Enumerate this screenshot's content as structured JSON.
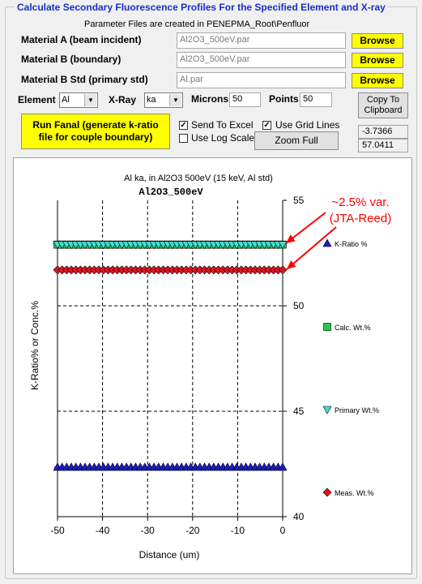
{
  "group_title": "Calculate Secondary Fluorescence Profiles For the Specified Element and X-ray",
  "subtitle": "Parameter Files are created in PENEPMA_Root\\Penfluor",
  "materials": [
    {
      "label": "Material A (beam incident)",
      "value": "Al2O3_500eV.par",
      "button": "Browse"
    },
    {
      "label": "Material B (boundary)",
      "value": "Al2O3_500eV.par",
      "button": "Browse"
    },
    {
      "label": "Material B Std (primary std)",
      "value": "Al.par",
      "button": "Browse"
    }
  ],
  "element": {
    "label": "Element",
    "value": "Al"
  },
  "xray": {
    "label": "X-Ray",
    "value": "ka"
  },
  "microns": {
    "label": "Microns",
    "value": "50"
  },
  "points": {
    "label": "Points",
    "value": "50"
  },
  "copy_button": "Copy To Clipboard",
  "run_button": "Run Fanal (generate k-ratio file for couple boundary)",
  "checkboxes": {
    "send_to_excel": {
      "label": "Send To Excel",
      "checked": true
    },
    "use_grid_lines": {
      "label": "Use Grid Lines",
      "checked": true
    },
    "use_log_scale": {
      "label": "Use Log Scale",
      "checked": false
    }
  },
  "zoom_button": "Zoom Full",
  "readouts": [
    "-3.7366",
    "57.0411"
  ],
  "annotation": {
    "line1": "~2.5% var.",
    "line2": "(JTA-Reed)",
    "color": "#ff0000"
  },
  "chart_data": {
    "type": "line",
    "title": "Al ka, in Al2O3 500eV (15 keV, Al std)",
    "subtitle": "Al2O3_500eV",
    "xlabel": "Distance (um)",
    "ylabel": "K-Ratio% or Conc.%",
    "xlim": [
      -50,
      0
    ],
    "ylim": [
      40,
      55
    ],
    "xticks": [
      "-50",
      "-40",
      "-30",
      "-20",
      "-10",
      "0"
    ],
    "yticks": [
      "40",
      "45",
      "50",
      "55"
    ],
    "grid": true,
    "legend_position": "right",
    "npoints": 50,
    "series": [
      {
        "name": "K-Ratio %",
        "y": 42.35,
        "color": "#1c1cc8",
        "marker": "triangle-up"
      },
      {
        "name": "Calc. Wt.%",
        "y": 52.9,
        "color": "#22c84a",
        "marker": "square"
      },
      {
        "name": "Primary Wt.%",
        "y": 52.9,
        "color": "#40e0d0",
        "marker": "triangle-down"
      },
      {
        "name": "Meas. Wt.%",
        "y": 51.7,
        "color": "#e0141e",
        "marker": "diamond"
      }
    ]
  }
}
